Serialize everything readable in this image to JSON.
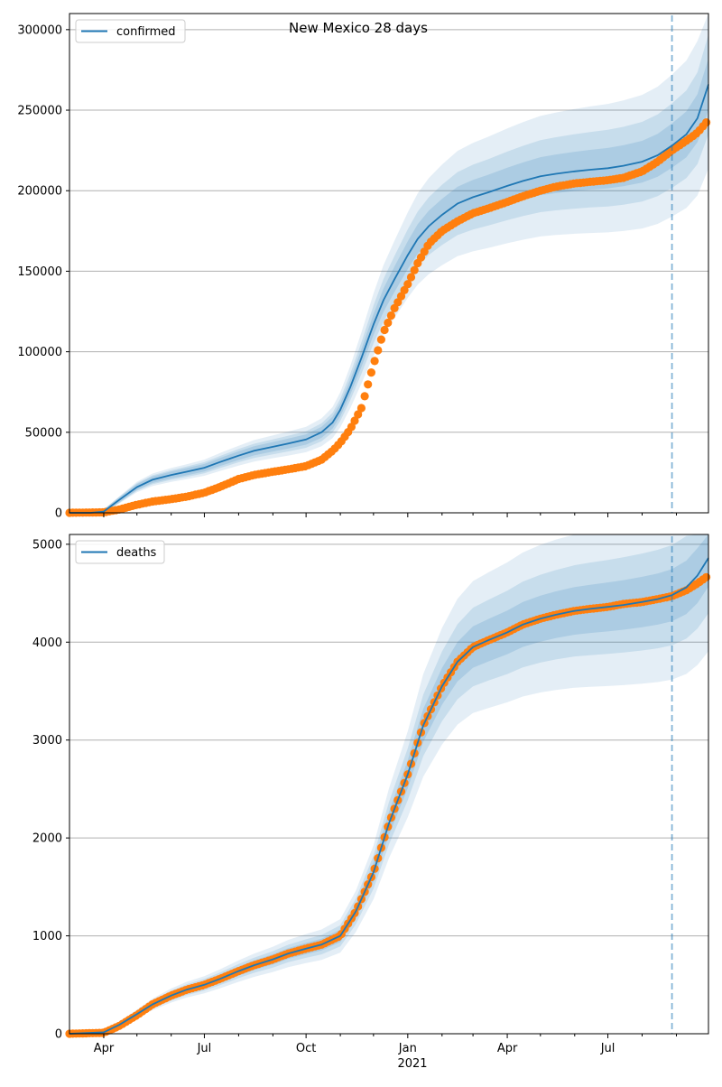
{
  "figure_title": "New Mexico 28 days",
  "year_label": "2021",
  "colors": {
    "model": "#1f77b4",
    "observed": "#ff7f0e",
    "band": "#1f77b4",
    "grid": "#b0b0b0",
    "forecast_line": "#1f77b4"
  },
  "chart_data": [
    {
      "type": "line",
      "legend": "confirmed",
      "legend_location": "top-left",
      "grid": "horizontal",
      "x_range": [
        "2020-03-01",
        "2021-09-30"
      ],
      "ylim": [
        0,
        310000
      ],
      "yticks": [
        0,
        50000,
        100000,
        150000,
        200000,
        250000,
        300000
      ],
      "forecast_start": "2021-08-28",
      "series": [
        {
          "role": "model-median",
          "x": [
            "2020-03-01",
            "2020-03-20",
            "2020-04-01",
            "2020-04-15",
            "2020-05-01",
            "2020-05-15",
            "2020-06-01",
            "2020-06-15",
            "2020-07-01",
            "2020-07-15",
            "2020-08-01",
            "2020-08-15",
            "2020-09-01",
            "2020-09-15",
            "2020-10-01",
            "2020-10-15",
            "2020-10-25",
            "2020-11-01",
            "2020-11-10",
            "2020-11-20",
            "2020-12-01",
            "2020-12-10",
            "2020-12-20",
            "2021-01-01",
            "2021-01-10",
            "2021-01-20",
            "2021-02-01",
            "2021-02-15",
            "2021-03-01",
            "2021-03-15",
            "2021-04-01",
            "2021-04-15",
            "2021-05-01",
            "2021-05-15",
            "2021-06-01",
            "2021-06-15",
            "2021-07-01",
            "2021-07-15",
            "2021-08-01",
            "2021-08-15",
            "2021-08-28",
            "2021-09-10",
            "2021-09-20",
            "2021-09-30"
          ],
          "values": [
            0,
            0,
            800,
            8000,
            16000,
            20500,
            23500,
            25500,
            28000,
            31500,
            35500,
            38500,
            41000,
            43000,
            45500,
            50000,
            56000,
            64000,
            78000,
            96000,
            117000,
            132000,
            145000,
            160000,
            170000,
            178000,
            185000,
            192000,
            196000,
            199000,
            203000,
            206000,
            209000,
            210500,
            212000,
            213000,
            214000,
            215500,
            218000,
            222000,
            228000,
            235000,
            245000,
            266000
          ]
        },
        {
          "role": "observed",
          "x": [
            "2020-03-01",
            "2020-04-01",
            "2020-04-15",
            "2020-05-01",
            "2020-05-15",
            "2020-06-01",
            "2020-06-15",
            "2020-07-01",
            "2020-07-15",
            "2020-08-01",
            "2020-08-15",
            "2020-09-01",
            "2020-09-15",
            "2020-10-01",
            "2020-10-15",
            "2020-10-25",
            "2020-11-01",
            "2020-11-10",
            "2020-11-20",
            "2020-12-01",
            "2020-12-10",
            "2020-12-20",
            "2021-01-01",
            "2021-01-10",
            "2021-01-20",
            "2021-02-01",
            "2021-02-15",
            "2021-03-01",
            "2021-03-15",
            "2021-04-01",
            "2021-04-15",
            "2021-05-01",
            "2021-05-15",
            "2021-06-01",
            "2021-06-15",
            "2021-07-01",
            "2021-07-15",
            "2021-08-01",
            "2021-08-15",
            "2021-08-28",
            "2021-09-10",
            "2021-09-20",
            "2021-09-30"
          ],
          "values": [
            0,
            300,
            2000,
            5000,
            7000,
            8500,
            10000,
            12500,
            16000,
            21000,
            23500,
            25500,
            27000,
            29000,
            33000,
            38500,
            43500,
            52000,
            65000,
            92000,
            112000,
            127000,
            142000,
            155000,
            167000,
            175000,
            181000,
            186000,
            189000,
            193000,
            196500,
            200000,
            202500,
            204500,
            205500,
            206500,
            208000,
            212000,
            218000,
            225000,
            231000,
            236000,
            244000
          ]
        }
      ]
    },
    {
      "type": "line",
      "legend": "deaths",
      "legend_location": "top-left",
      "grid": "horizontal",
      "x_range": [
        "2020-03-01",
        "2021-09-30"
      ],
      "ylim": [
        0,
        5100
      ],
      "yticks": [
        0,
        1000,
        2000,
        3000,
        4000,
        5000
      ],
      "xticks": [
        "Apr",
        "Jul",
        "Oct",
        "Jan",
        "Apr",
        "Jul"
      ],
      "forecast_start": "2021-08-28",
      "series": [
        {
          "role": "model-median",
          "x": [
            "2020-03-01",
            "2020-04-01",
            "2020-04-15",
            "2020-05-01",
            "2020-05-15",
            "2020-06-01",
            "2020-06-15",
            "2020-07-01",
            "2020-07-15",
            "2020-08-01",
            "2020-08-15",
            "2020-09-01",
            "2020-09-15",
            "2020-10-01",
            "2020-10-15",
            "2020-11-01",
            "2020-11-15",
            "2020-12-01",
            "2020-12-15",
            "2021-01-01",
            "2021-01-15",
            "2021-02-01",
            "2021-02-15",
            "2021-03-01",
            "2021-03-15",
            "2021-04-01",
            "2021-04-15",
            "2021-05-01",
            "2021-05-15",
            "2021-06-01",
            "2021-06-15",
            "2021-07-01",
            "2021-07-15",
            "2021-08-01",
            "2021-08-15",
            "2021-08-28",
            "2021-09-10",
            "2021-09-20",
            "2021-09-30"
          ],
          "values": [
            0,
            15,
            90,
            200,
            300,
            390,
            450,
            500,
            560,
            640,
            700,
            760,
            820,
            870,
            910,
            1000,
            1250,
            1650,
            2150,
            2650,
            3150,
            3550,
            3800,
            3950,
            4020,
            4100,
            4180,
            4240,
            4280,
            4320,
            4340,
            4360,
            4380,
            4410,
            4440,
            4480,
            4560,
            4680,
            4860
          ]
        },
        {
          "role": "observed",
          "x": [
            "2020-03-01",
            "2020-04-01",
            "2020-04-15",
            "2020-05-01",
            "2020-05-15",
            "2020-06-01",
            "2020-06-15",
            "2020-07-01",
            "2020-07-15",
            "2020-08-01",
            "2020-08-15",
            "2020-09-01",
            "2020-09-15",
            "2020-10-01",
            "2020-10-15",
            "2020-11-01",
            "2020-11-15",
            "2020-12-01",
            "2020-12-15",
            "2021-01-01",
            "2021-01-15",
            "2021-02-01",
            "2021-02-15",
            "2021-03-01",
            "2021-03-15",
            "2021-04-01",
            "2021-04-15",
            "2021-05-01",
            "2021-05-15",
            "2021-06-01",
            "2021-06-15",
            "2021-07-01",
            "2021-07-15",
            "2021-08-01",
            "2021-08-15",
            "2021-08-28",
            "2021-09-10",
            "2021-09-20",
            "2021-09-30"
          ],
          "values": [
            0,
            10,
            80,
            190,
            300,
            390,
            450,
            500,
            560,
            640,
            700,
            760,
            820,
            870,
            910,
            1000,
            1250,
            1650,
            2150,
            2650,
            3150,
            3550,
            3800,
            3950,
            4020,
            4100,
            4180,
            4240,
            4280,
            4320,
            4340,
            4360,
            4390,
            4410,
            4440,
            4470,
            4530,
            4600,
            4680
          ]
        }
      ]
    }
  ]
}
